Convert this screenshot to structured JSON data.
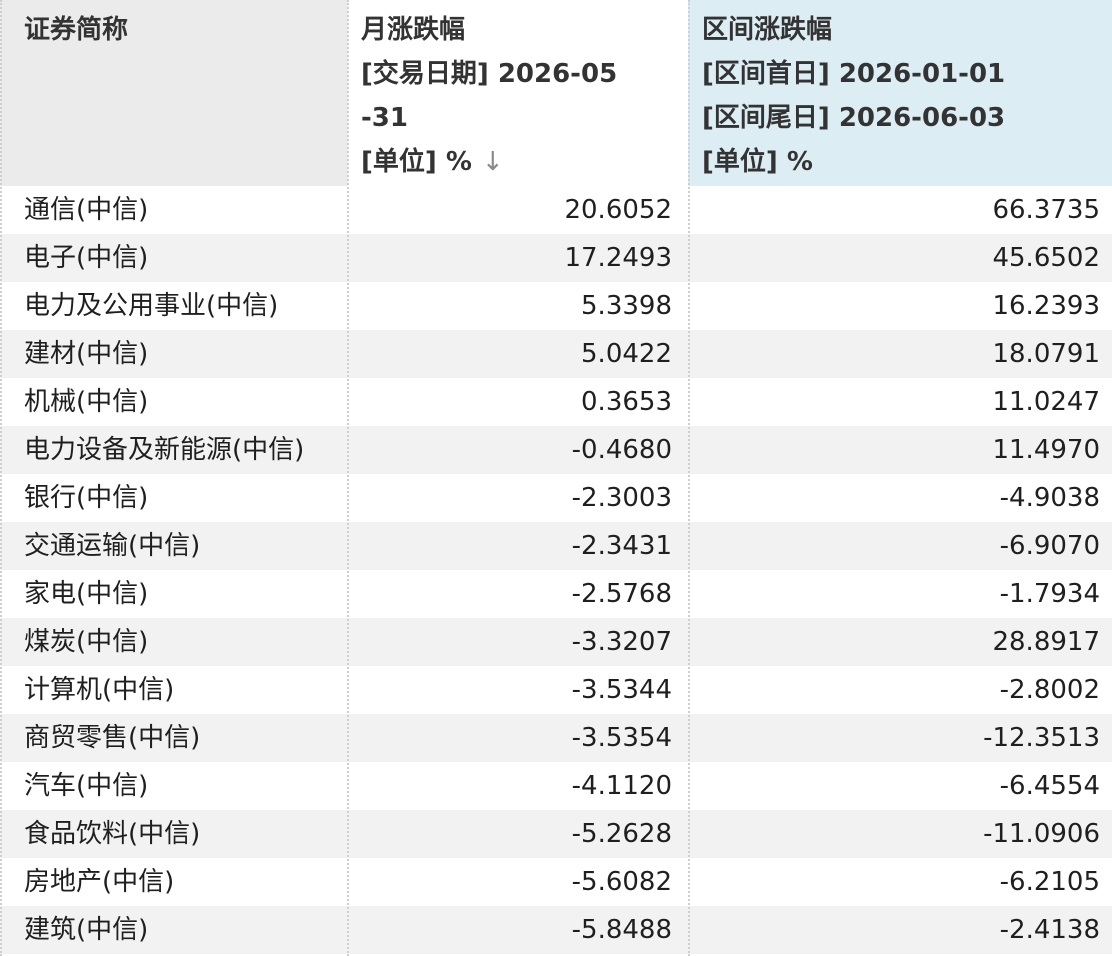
{
  "columns": {
    "name": {
      "title": "证券简称"
    },
    "month": {
      "title": "月涨跌幅",
      "line2": "[交易日期] 2026-05",
      "line3": "-31",
      "line4": "[单位] %",
      "sort_icon": "↓"
    },
    "range": {
      "title": "区间涨跌幅",
      "line2": "[区间首日] 2026-01-01",
      "line3": "[区间尾日] 2026-06-03",
      "line4": "[单位] %"
    }
  },
  "rows": [
    {
      "name": "通信(中信)",
      "month": "20.6052",
      "range": "66.3735"
    },
    {
      "name": "电子(中信)",
      "month": "17.2493",
      "range": "45.6502"
    },
    {
      "name": "电力及公用事业(中信)",
      "month": "5.3398",
      "range": "16.2393"
    },
    {
      "name": "建材(中信)",
      "month": "5.0422",
      "range": "18.0791"
    },
    {
      "name": "机械(中信)",
      "month": "0.3653",
      "range": "11.0247"
    },
    {
      "name": "电力设备及新能源(中信)",
      "month": "-0.4680",
      "range": "11.4970"
    },
    {
      "name": "银行(中信)",
      "month": "-2.3003",
      "range": "-4.9038"
    },
    {
      "name": "交通运输(中信)",
      "month": "-2.3431",
      "range": "-6.9070"
    },
    {
      "name": "家电(中信)",
      "month": "-2.5768",
      "range": "-1.7934"
    },
    {
      "name": "煤炭(中信)",
      "month": "-3.3207",
      "range": "28.8917"
    },
    {
      "name": "计算机(中信)",
      "month": "-3.5344",
      "range": "-2.8002"
    },
    {
      "name": "商贸零售(中信)",
      "month": "-3.5354",
      "range": "-12.3513"
    },
    {
      "name": "汽车(中信)",
      "month": "-4.1120",
      "range": "-6.4554"
    },
    {
      "name": "食品饮料(中信)",
      "month": "-5.2628",
      "range": "-11.0906"
    },
    {
      "name": "房地产(中信)",
      "month": "-5.6082",
      "range": "-6.2105"
    },
    {
      "name": "建筑(中信)",
      "month": "-5.8488",
      "range": "-2.4138"
    }
  ]
}
